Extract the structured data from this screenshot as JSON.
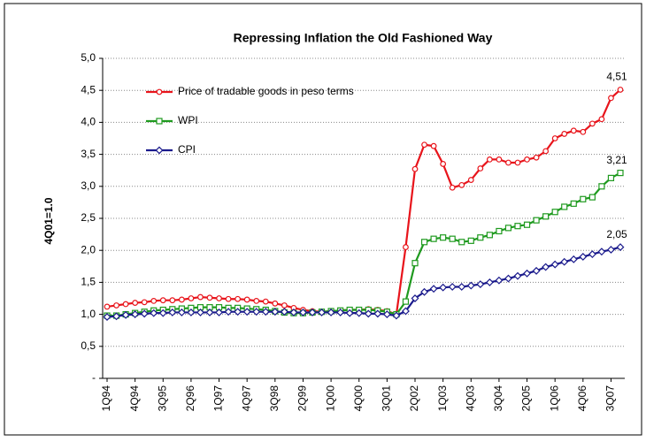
{
  "chart_data": {
    "type": "line",
    "title": "Repressing Inflation the Old Fashioned Way",
    "y_label": "4Q01=1.0",
    "categories": [
      "1Q94",
      null,
      null,
      "4Q94",
      null,
      null,
      "3Q95",
      null,
      null,
      "2Q96",
      null,
      null,
      "1Q97",
      null,
      null,
      "4Q97",
      null,
      null,
      "3Q98",
      null,
      null,
      "2Q99",
      null,
      null,
      "1Q00",
      null,
      null,
      "4Q00",
      null,
      null,
      "3Q01",
      null,
      null,
      "2Q02",
      null,
      null,
      "1Q03",
      null,
      null,
      "4Q03",
      null,
      null,
      "3Q04",
      null,
      null,
      "2Q05",
      null,
      null,
      "1Q06",
      null,
      null,
      "4Q06",
      null,
      null,
      "3Q07",
      null
    ],
    "series": [
      {
        "name": "Price of tradable goods in peso terms",
        "color": "#e8141b",
        "marker": "circle",
        "values": [
          1.12,
          1.14,
          1.16,
          1.18,
          1.19,
          1.21,
          1.22,
          1.22,
          1.23,
          1.25,
          1.27,
          1.26,
          1.25,
          1.24,
          1.24,
          1.23,
          1.21,
          1.2,
          1.17,
          1.14,
          1.1,
          1.07,
          1.05,
          1.04,
          1.05,
          1.06,
          1.07,
          1.07,
          1.08,
          1.07,
          1.05,
          1.0,
          2.05,
          3.27,
          3.65,
          3.63,
          3.35,
          2.98,
          3.02,
          3.1,
          3.28,
          3.42,
          3.42,
          3.37,
          3.37,
          3.42,
          3.45,
          3.55,
          3.75,
          3.82,
          3.87,
          3.85,
          3.98,
          4.05,
          4.38,
          4.51
        ],
        "value_labels": [
          null,
          null,
          null,
          null,
          null,
          null,
          null,
          null,
          null,
          null,
          null,
          null,
          null,
          null,
          null,
          null,
          null,
          null,
          null,
          null,
          null,
          null,
          null,
          null,
          null,
          null,
          null,
          null,
          null,
          null,
          null,
          null,
          null,
          null,
          null,
          null,
          null,
          null,
          null,
          null,
          null,
          null,
          null,
          null,
          null,
          null,
          null,
          null,
          null,
          null,
          null,
          null,
          null,
          null,
          null,
          "4,51"
        ]
      },
      {
        "name": "WPI",
        "color": "#1f9a1f",
        "marker": "square",
        "values": [
          0.98,
          0.98,
          1.0,
          1.02,
          1.04,
          1.06,
          1.07,
          1.08,
          1.09,
          1.1,
          1.11,
          1.11,
          1.11,
          1.1,
          1.1,
          1.09,
          1.08,
          1.07,
          1.05,
          1.03,
          1.02,
          1.02,
          1.03,
          1.04,
          1.05,
          1.06,
          1.07,
          1.07,
          1.07,
          1.06,
          1.04,
          1.0,
          1.2,
          1.8,
          2.13,
          2.18,
          2.2,
          2.18,
          2.13,
          2.15,
          2.2,
          2.24,
          2.3,
          2.35,
          2.38,
          2.4,
          2.47,
          2.53,
          2.6,
          2.68,
          2.73,
          2.8,
          2.83,
          3.0,
          3.13,
          3.21
        ],
        "value_labels": [
          null,
          null,
          null,
          null,
          null,
          null,
          null,
          null,
          null,
          null,
          null,
          null,
          null,
          null,
          null,
          null,
          null,
          null,
          null,
          null,
          null,
          null,
          null,
          null,
          null,
          null,
          null,
          null,
          null,
          null,
          null,
          null,
          null,
          null,
          null,
          null,
          null,
          null,
          null,
          null,
          null,
          null,
          null,
          null,
          null,
          null,
          null,
          null,
          null,
          null,
          null,
          null,
          null,
          null,
          null,
          "3,21"
        ]
      },
      {
        "name": "CPI",
        "color": "#1a1a8c",
        "marker": "diamond",
        "values": [
          0.96,
          0.97,
          0.99,
          1.0,
          1.01,
          1.02,
          1.02,
          1.03,
          1.03,
          1.03,
          1.03,
          1.03,
          1.03,
          1.04,
          1.04,
          1.04,
          1.04,
          1.04,
          1.04,
          1.04,
          1.03,
          1.03,
          1.03,
          1.03,
          1.03,
          1.03,
          1.02,
          1.02,
          1.01,
          1.01,
          1.0,
          0.98,
          1.05,
          1.25,
          1.35,
          1.4,
          1.42,
          1.43,
          1.43,
          1.45,
          1.47,
          1.5,
          1.53,
          1.56,
          1.6,
          1.64,
          1.68,
          1.74,
          1.78,
          1.82,
          1.86,
          1.9,
          1.94,
          1.98,
          2.01,
          2.05
        ],
        "value_labels": [
          null,
          null,
          null,
          null,
          null,
          null,
          null,
          null,
          null,
          null,
          null,
          null,
          null,
          null,
          null,
          null,
          null,
          null,
          null,
          null,
          null,
          null,
          null,
          null,
          null,
          null,
          null,
          null,
          null,
          null,
          null,
          null,
          null,
          null,
          null,
          null,
          null,
          null,
          null,
          null,
          null,
          null,
          null,
          null,
          null,
          null,
          null,
          null,
          null,
          null,
          null,
          null,
          null,
          null,
          null,
          "2,05"
        ]
      }
    ],
    "ylim": [
      0,
      5
    ],
    "yticks": [
      {
        "value": 0,
        "label": "-"
      },
      {
        "value": 0.5,
        "label": "0,5"
      },
      {
        "value": 1,
        "label": "1,0"
      },
      {
        "value": 1.5,
        "label": "1,5"
      },
      {
        "value": 2,
        "label": "2,0"
      },
      {
        "value": 2.5,
        "label": "2,5"
      },
      {
        "value": 3,
        "label": "3,0"
      },
      {
        "value": 3.5,
        "label": "3,5"
      },
      {
        "value": 4,
        "label": "4,0"
      },
      {
        "value": 4.5,
        "label": "4,5"
      },
      {
        "value": 5,
        "label": "5,0"
      }
    ],
    "grid": true,
    "legend": "upper-left"
  }
}
